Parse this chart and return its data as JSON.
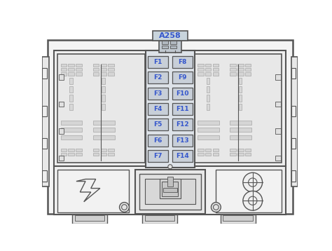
{
  "bg_color": "#ffffff",
  "outer_fill": "#f5f5f5",
  "panel_fill": "#ebebeb",
  "inner_fill": "#e2e2e2",
  "slot_fill": "#d5d5d5",
  "fuse_fill": "#c8cfd8",
  "fuse_text_color": "#3355cc",
  "border_color": "#555555",
  "line_color": "#888888",
  "thin_color": "#999999",
  "connector_label": "A258",
  "fuse_labels_left": [
    "F1",
    "F2",
    "F3",
    "F4",
    "F5",
    "F6",
    "F7"
  ],
  "fuse_labels_right": [
    "F8",
    "F9",
    "F10",
    "F11",
    "F12",
    "F13",
    "F14"
  ]
}
